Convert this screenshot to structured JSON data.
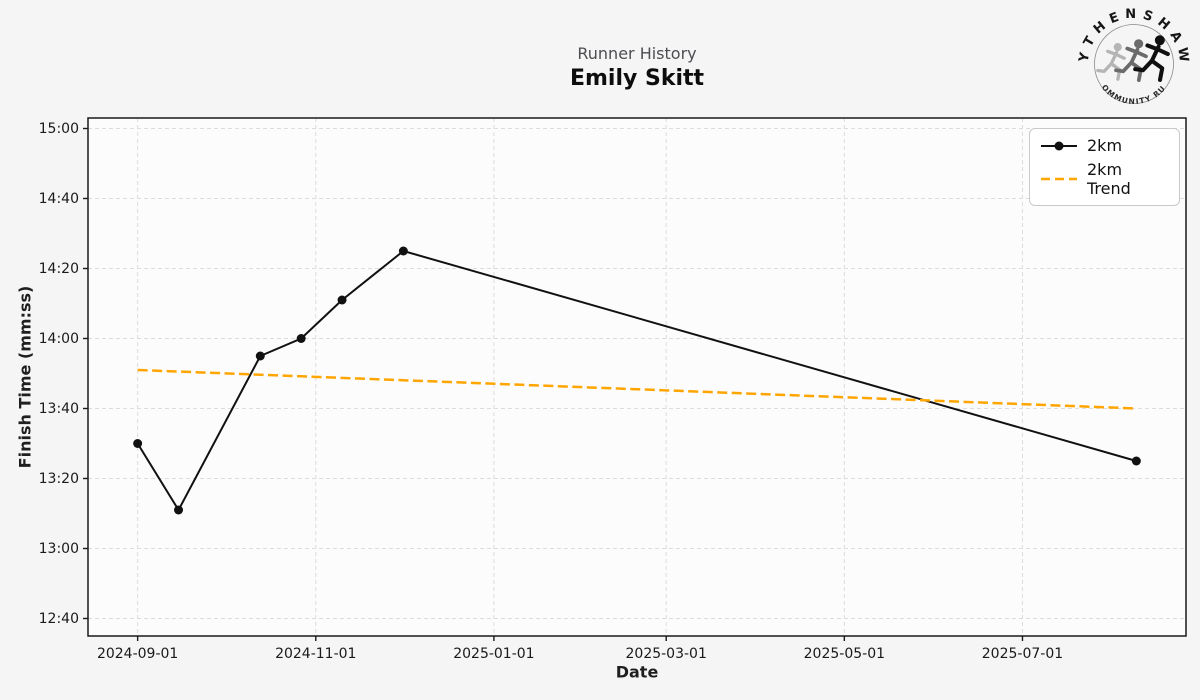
{
  "header": {
    "title": "Runner History",
    "runner_name": "Emily Skitt"
  },
  "axes": {
    "xlabel": "Date",
    "ylabel": "Finish Time (mm:ss)"
  },
  "logo": {
    "top_text": "WYTHENSHAWE",
    "bottom_text": "COMMUNITY RUN",
    "runner_icon_colors": [
      "#b5b5b5",
      "#6b6b6b",
      "#101010"
    ]
  },
  "legend": {
    "items": [
      {
        "label": "2km",
        "color": "#111111",
        "style": "solid-marker"
      },
      {
        "label": "2km Trend",
        "color": "#FFA500",
        "style": "dashed"
      }
    ]
  },
  "colors": {
    "figure_bg": "#f5f5f5",
    "plot_bg": "#fcfcfc",
    "grid": "#dcdcdc",
    "spine": "#1a1a1a",
    "tick_text": "#1a1a1a",
    "series_2km": "#111111",
    "trend": "#FFA500"
  },
  "chart_data": {
    "type": "line",
    "title": "Runner History",
    "subtitle": "Emily Skitt",
    "xlabel": "Date",
    "ylabel": "Finish Time (mm:ss)",
    "grid": true,
    "legend_position": "upper right",
    "x_domain": [
      "2024-08-15",
      "2025-08-26"
    ],
    "y_domain_mmss": [
      "12:35",
      "15:03"
    ],
    "x_ticks": [
      "2024-09-01",
      "2024-11-01",
      "2025-01-01",
      "2025-03-01",
      "2025-05-01",
      "2025-07-01"
    ],
    "y_ticks": [
      "15:00",
      "14:40",
      "14:20",
      "14:00",
      "13:40",
      "13:20",
      "13:00",
      "12:40"
    ],
    "series": [
      {
        "name": "2km",
        "style": "solid-marker",
        "color": "#111111",
        "points": [
          {
            "date": "2024-09-01",
            "time": "13:30"
          },
          {
            "date": "2024-09-15",
            "time": "13:11"
          },
          {
            "date": "2024-10-13",
            "time": "13:55"
          },
          {
            "date": "2024-10-27",
            "time": "14:00"
          },
          {
            "date": "2024-11-10",
            "time": "14:11"
          },
          {
            "date": "2024-12-01",
            "time": "14:25"
          },
          {
            "date": "2025-08-09",
            "time": "13:25"
          }
        ]
      },
      {
        "name": "2km Trend",
        "style": "dashed",
        "color": "#FFA500",
        "points": [
          {
            "date": "2024-09-01",
            "time": "13:51"
          },
          {
            "date": "2025-08-09",
            "time": "13:40"
          }
        ]
      }
    ]
  }
}
